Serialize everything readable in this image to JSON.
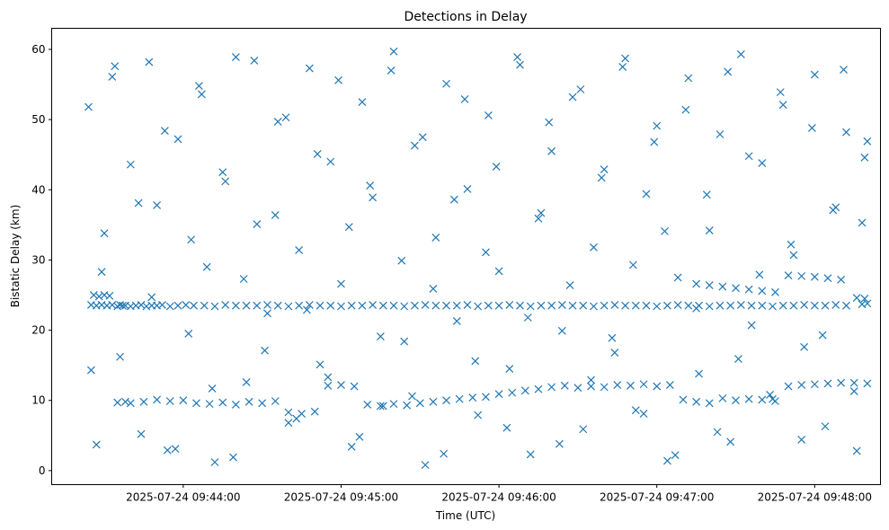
{
  "chart_data": {
    "type": "scatter",
    "title": "Detections in Delay",
    "xlabel": "Time (UTC)",
    "ylabel": "Bistatic Delay (km)",
    "marker": "x",
    "color": "#1f77b4",
    "grid": false,
    "xlim": [
      "2025-07-24 09:43:10",
      "2025-07-24 09:48:25"
    ],
    "ylim": [
      -2,
      63
    ],
    "xticks": [
      {
        "value": "2025-07-24 09:44:00",
        "label": "2025-07-24 09:44:00"
      },
      {
        "value": "2025-07-24 09:45:00",
        "label": "2025-07-24 09:45:00"
      },
      {
        "value": "2025-07-24 09:46:00",
        "label": "2025-07-24 09:46:00"
      },
      {
        "value": "2025-07-24 09:47:00",
        "label": "2025-07-24 09:47:00"
      },
      {
        "value": "2025-07-24 09:48:00",
        "label": "2025-07-24 09:48:00"
      }
    ],
    "yticks": [
      0,
      10,
      20,
      30,
      40,
      50,
      60
    ],
    "series": [
      {
        "x": [
          "2025-07-24 09:43:25",
          "2025-07-24 09:43:26",
          "2025-07-24 09:43:27",
          "2025-07-24 09:43:28",
          "2025-07-24 09:43:29",
          "2025-07-24 09:43:30",
          "2025-07-24 09:43:31",
          "2025-07-24 09:43:32",
          "2025-07-24 09:43:33",
          "2025-07-24 09:43:35",
          "2025-07-24 09:43:36",
          "2025-07-24 09:43:37",
          "2025-07-24 09:43:38",
          "2025-07-24 09:43:40",
          "2025-07-24 09:43:42",
          "2025-07-24 09:43:44",
          "2025-07-24 09:43:46",
          "2025-07-24 09:43:48",
          "2025-07-24 09:43:50",
          "2025-07-24 09:43:52",
          "2025-07-24 09:43:55",
          "2025-07-24 09:43:58",
          "2025-07-24 09:44:01",
          "2025-07-24 09:44:04",
          "2025-07-24 09:44:08",
          "2025-07-24 09:44:12",
          "2025-07-24 09:44:16",
          "2025-07-24 09:44:20",
          "2025-07-24 09:44:24",
          "2025-07-24 09:44:28",
          "2025-07-24 09:44:32",
          "2025-07-24 09:44:36",
          "2025-07-24 09:44:40",
          "2025-07-24 09:44:44",
          "2025-07-24 09:44:48",
          "2025-07-24 09:44:52",
          "2025-07-24 09:44:56",
          "2025-07-24 09:45:00",
          "2025-07-24 09:45:04",
          "2025-07-24 09:45:08",
          "2025-07-24 09:45:12",
          "2025-07-24 09:45:16",
          "2025-07-24 09:45:20",
          "2025-07-24 09:45:24",
          "2025-07-24 09:45:28",
          "2025-07-24 09:45:32",
          "2025-07-24 09:45:36",
          "2025-07-24 09:45:40",
          "2025-07-24 09:45:44",
          "2025-07-24 09:45:48",
          "2025-07-24 09:45:52",
          "2025-07-24 09:45:56",
          "2025-07-24 09:46:00",
          "2025-07-24 09:46:04",
          "2025-07-24 09:46:08",
          "2025-07-24 09:46:12",
          "2025-07-24 09:46:16",
          "2025-07-24 09:46:20",
          "2025-07-24 09:46:24",
          "2025-07-24 09:46:28",
          "2025-07-24 09:46:32",
          "2025-07-24 09:46:36",
          "2025-07-24 09:46:40",
          "2025-07-24 09:46:44",
          "2025-07-24 09:46:48",
          "2025-07-24 09:46:52",
          "2025-07-24 09:46:56",
          "2025-07-24 09:47:00",
          "2025-07-24 09:47:04",
          "2025-07-24 09:47:08",
          "2025-07-24 09:47:12",
          "2025-07-24 09:47:16",
          "2025-07-24 09:47:20",
          "2025-07-24 09:47:24",
          "2025-07-24 09:47:28",
          "2025-07-24 09:47:32",
          "2025-07-24 09:47:36",
          "2025-07-24 09:47:40",
          "2025-07-24 09:47:44",
          "2025-07-24 09:47:48",
          "2025-07-24 09:47:52",
          "2025-07-24 09:47:56",
          "2025-07-24 09:48:00",
          "2025-07-24 09:48:04",
          "2025-07-24 09:48:08",
          "2025-07-24 09:48:12",
          "2025-07-24 09:48:16",
          "2025-07-24 09:48:18",
          "2025-07-24 09:48:19",
          "2025-07-24 09:48:20"
        ],
        "y": [
          23.6,
          25.0,
          23.5,
          24.8,
          23.6,
          25.0,
          23.5,
          24.9,
          23.6,
          23.4,
          23.6,
          23.5,
          23.5,
          23.4,
          23.5,
          23.6,
          23.4,
          23.5,
          23.5,
          23.6,
          23.4,
          23.5,
          23.6,
          23.5,
          23.5,
          23.4,
          23.6,
          23.5,
          23.5,
          23.5,
          23.6,
          23.5,
          23.4,
          23.5,
          23.6,
          23.5,
          23.5,
          23.4,
          23.5,
          23.5,
          23.6,
          23.5,
          23.5,
          23.4,
          23.5,
          23.6,
          23.5,
          23.5,
          23.5,
          23.6,
          23.4,
          23.5,
          23.5,
          23.6,
          23.5,
          23.4,
          23.5,
          23.5,
          23.6,
          23.5,
          23.5,
          23.4,
          23.5,
          23.6,
          23.5,
          23.5,
          23.5,
          23.4,
          23.5,
          23.6,
          23.5,
          23.5,
          23.4,
          23.5,
          23.5,
          23.6,
          23.5,
          23.5,
          23.4,
          23.5,
          23.5,
          23.6,
          23.5,
          23.5,
          23.6,
          23.5,
          24.6,
          23.7,
          24.5,
          23.8
        ]
      },
      {
        "x": [
          "2025-07-24 09:43:35",
          "2025-07-24 09:43:40",
          "2025-07-24 09:43:45",
          "2025-07-24 09:43:50",
          "2025-07-24 09:43:55",
          "2025-07-24 09:44:00",
          "2025-07-24 09:44:05",
          "2025-07-24 09:44:10",
          "2025-07-24 09:44:15",
          "2025-07-24 09:44:20",
          "2025-07-24 09:44:25",
          "2025-07-24 09:44:30",
          "2025-07-24 09:44:35",
          "2025-07-24 09:44:40",
          "2025-07-24 09:44:45",
          "2025-07-24 09:44:50",
          "2025-07-24 09:44:55",
          "2025-07-24 09:45:00",
          "2025-07-24 09:45:05",
          "2025-07-24 09:45:10",
          "2025-07-24 09:45:15",
          "2025-07-24 09:45:20",
          "2025-07-24 09:45:25",
          "2025-07-24 09:45:30",
          "2025-07-24 09:45:35",
          "2025-07-24 09:45:40",
          "2025-07-24 09:45:45",
          "2025-07-24 09:45:50",
          "2025-07-24 09:45:55",
          "2025-07-24 09:46:00",
          "2025-07-24 09:46:05",
          "2025-07-24 09:46:10",
          "2025-07-24 09:46:15",
          "2025-07-24 09:46:20",
          "2025-07-24 09:46:25",
          "2025-07-24 09:46:30",
          "2025-07-24 09:46:35",
          "2025-07-24 09:46:40",
          "2025-07-24 09:46:45",
          "2025-07-24 09:46:50",
          "2025-07-24 09:46:55",
          "2025-07-24 09:47:00",
          "2025-07-24 09:47:05",
          "2025-07-24 09:47:10",
          "2025-07-24 09:47:15",
          "2025-07-24 09:47:20",
          "2025-07-24 09:47:25",
          "2025-07-24 09:47:30",
          "2025-07-24 09:47:35",
          "2025-07-24 09:47:40",
          "2025-07-24 09:47:45",
          "2025-07-24 09:47:50",
          "2025-07-24 09:47:55",
          "2025-07-24 09:48:00",
          "2025-07-24 09:48:05",
          "2025-07-24 09:48:10",
          "2025-07-24 09:48:15",
          "2025-07-24 09:48:20"
        ],
        "y": [
          9.7,
          9.6,
          9.8,
          10.1,
          9.9,
          10.0,
          9.6,
          9.5,
          9.7,
          9.4,
          9.8,
          9.6,
          9.9,
          8.3,
          8.1,
          8.4,
          12.1,
          12.2,
          12.0,
          9.4,
          9.2,
          9.5,
          9.3,
          9.6,
          9.8,
          10.0,
          10.2,
          10.4,
          10.5,
          10.9,
          11.1,
          11.4,
          11.6,
          11.9,
          12.1,
          11.8,
          12.0,
          11.9,
          12.2,
          12.1,
          12.3,
          12.0,
          12.2,
          10.1,
          9.8,
          9.6,
          10.3,
          10.0,
          10.2,
          10.1,
          9.9,
          12.0,
          12.2,
          12.3,
          12.4,
          12.5,
          12.5,
          12.4
        ]
      },
      {
        "x": [
          "2025-07-24 09:47:15",
          "2025-07-24 09:47:20",
          "2025-07-24 09:47:25",
          "2025-07-24 09:47:30",
          "2025-07-24 09:47:35",
          "2025-07-24 09:47:40",
          "2025-07-24 09:47:45",
          "2025-07-24 09:47:50",
          "2025-07-24 09:47:55",
          "2025-07-24 09:48:00",
          "2025-07-24 09:48:05",
          "2025-07-24 09:48:10"
        ],
        "y": [
          26.6,
          26.4,
          26.2,
          26.0,
          25.8,
          25.6,
          25.4,
          27.8,
          27.7,
          27.6,
          27.4,
          27.2
        ]
      },
      {
        "x": [
          "2025-07-24 09:43:24",
          "2025-07-24 09:43:27",
          "2025-07-24 09:43:30",
          "2025-07-24 09:43:33",
          "2025-07-24 09:43:36",
          "2025-07-24 09:43:40",
          "2025-07-24 09:43:44",
          "2025-07-24 09:43:47",
          "2025-07-24 09:43:50",
          "2025-07-24 09:43:54",
          "2025-07-24 09:43:58",
          "2025-07-24 09:44:02",
          "2025-07-24 09:44:06",
          "2025-07-24 09:44:09",
          "2025-07-24 09:44:12",
          "2025-07-24 09:44:16",
          "2025-07-24 09:44:20",
          "2025-07-24 09:44:24",
          "2025-07-24 09:44:28",
          "2025-07-24 09:44:32",
          "2025-07-24 09:44:36",
          "2025-07-24 09:44:40",
          "2025-07-24 09:44:44",
          "2025-07-24 09:44:48",
          "2025-07-24 09:44:52",
          "2025-07-24 09:44:56",
          "2025-07-24 09:45:00",
          "2025-07-24 09:45:04",
          "2025-07-24 09:45:08",
          "2025-07-24 09:45:12",
          "2025-07-24 09:45:16",
          "2025-07-24 09:45:20",
          "2025-07-24 09:45:24",
          "2025-07-24 09:45:28",
          "2025-07-24 09:45:32",
          "2025-07-24 09:45:36",
          "2025-07-24 09:45:40",
          "2025-07-24 09:45:44",
          "2025-07-24 09:45:48",
          "2025-07-24 09:45:52",
          "2025-07-24 09:45:56",
          "2025-07-24 09:46:00",
          "2025-07-24 09:46:04",
          "2025-07-24 09:46:08",
          "2025-07-24 09:46:12",
          "2025-07-24 09:46:16",
          "2025-07-24 09:46:20",
          "2025-07-24 09:46:24",
          "2025-07-24 09:46:28",
          "2025-07-24 09:46:32",
          "2025-07-24 09:46:36",
          "2025-07-24 09:46:40",
          "2025-07-24 09:46:44",
          "2025-07-24 09:46:48",
          "2025-07-24 09:46:52",
          "2025-07-24 09:46:56",
          "2025-07-24 09:47:00",
          "2025-07-24 09:47:04",
          "2025-07-24 09:47:08",
          "2025-07-24 09:47:12",
          "2025-07-24 09:47:16",
          "2025-07-24 09:47:20",
          "2025-07-24 09:47:24",
          "2025-07-24 09:47:28",
          "2025-07-24 09:47:32",
          "2025-07-24 09:47:36",
          "2025-07-24 09:47:40",
          "2025-07-24 09:47:44",
          "2025-07-24 09:47:48",
          "2025-07-24 09:47:52",
          "2025-07-24 09:47:56",
          "2025-07-24 09:48:00",
          "2025-07-24 09:48:04",
          "2025-07-24 09:48:08",
          "2025-07-24 09:48:12",
          "2025-07-24 09:48:16",
          "2025-07-24 09:48:19"
        ],
        "y": [
          51.8,
          3.7,
          33.8,
          56.1,
          16.2,
          43.6,
          5.2,
          58.2,
          37.8,
          2.9,
          47.2,
          19.5,
          54.8,
          29.0,
          1.2,
          41.2,
          58.9,
          12.6,
          35.1,
          22.4,
          49.7,
          6.8,
          31.4,
          57.3,
          15.1,
          44.0,
          26.6,
          3.4,
          52.5,
          38.9,
          9.2,
          59.7,
          18.4,
          46.3,
          0.8,
          33.2,
          55.1,
          21.3,
          40.1,
          7.9,
          50.6,
          28.4,
          14.5,
          57.8,
          2.3,
          36.7,
          45.5,
          19.9,
          53.2,
          5.9,
          31.8,
          42.9,
          16.8,
          58.7,
          8.6,
          39.4,
          49.1,
          1.4,
          27.5,
          55.9,
          13.8,
          34.2,
          47.9,
          4.1,
          59.3,
          20.7,
          43.8,
          10.2,
          52.1,
          30.7,
          17.6,
          56.4,
          6.3,
          37.5,
          48.2,
          2.8,
          44.6
        ]
      },
      {
        "x": [
          "2025-07-24 09:43:25",
          "2025-07-24 09:43:29",
          "2025-07-24 09:43:34",
          "2025-07-24 09:43:38",
          "2025-07-24 09:43:43",
          "2025-07-24 09:43:48",
          "2025-07-24 09:43:53",
          "2025-07-24 09:43:57",
          "2025-07-24 09:44:03",
          "2025-07-24 09:44:07",
          "2025-07-24 09:44:11",
          "2025-07-24 09:44:15",
          "2025-07-24 09:44:19",
          "2025-07-24 09:44:23",
          "2025-07-24 09:44:27",
          "2025-07-24 09:44:31",
          "2025-07-24 09:44:35",
          "2025-07-24 09:44:39",
          "2025-07-24 09:44:43",
          "2025-07-24 09:44:47",
          "2025-07-24 09:44:51",
          "2025-07-24 09:44:55",
          "2025-07-24 09:44:59",
          "2025-07-24 09:45:03",
          "2025-07-24 09:45:07",
          "2025-07-24 09:45:11",
          "2025-07-24 09:45:15",
          "2025-07-24 09:45:19",
          "2025-07-24 09:45:23",
          "2025-07-24 09:45:27",
          "2025-07-24 09:45:31",
          "2025-07-24 09:45:35",
          "2025-07-24 09:45:39",
          "2025-07-24 09:45:43",
          "2025-07-24 09:45:47",
          "2025-07-24 09:45:51",
          "2025-07-24 09:45:55",
          "2025-07-24 09:45:59",
          "2025-07-24 09:46:03",
          "2025-07-24 09:46:07",
          "2025-07-24 09:46:11",
          "2025-07-24 09:46:15",
          "2025-07-24 09:46:19",
          "2025-07-24 09:46:23",
          "2025-07-24 09:46:27",
          "2025-07-24 09:46:31",
          "2025-07-24 09:46:35",
          "2025-07-24 09:46:39",
          "2025-07-24 09:46:43",
          "2025-07-24 09:46:47",
          "2025-07-24 09:46:51",
          "2025-07-24 09:46:55",
          "2025-07-24 09:46:59",
          "2025-07-24 09:47:03",
          "2025-07-24 09:47:07",
          "2025-07-24 09:47:11",
          "2025-07-24 09:47:15",
          "2025-07-24 09:47:19",
          "2025-07-24 09:47:23",
          "2025-07-24 09:47:27",
          "2025-07-24 09:47:31",
          "2025-07-24 09:47:35",
          "2025-07-24 09:47:39",
          "2025-07-24 09:47:43",
          "2025-07-24 09:47:47",
          "2025-07-24 09:47:51",
          "2025-07-24 09:47:55",
          "2025-07-24 09:47:59",
          "2025-07-24 09:48:03",
          "2025-07-24 09:48:07",
          "2025-07-24 09:48:11",
          "2025-07-24 09:48:15",
          "2025-07-24 09:48:18",
          "2025-07-24 09:48:20"
        ],
        "y": [
          14.3,
          28.3,
          57.6,
          9.8,
          38.1,
          24.7,
          48.4,
          3.1,
          32.9,
          53.6,
          11.7,
          42.5,
          1.9,
          27.3,
          58.4,
          17.1,
          36.4,
          50.3,
          7.4,
          22.9,
          45.1,
          13.3,
          55.6,
          34.7,
          4.8,
          40.6,
          19.1,
          57.0,
          29.9,
          10.6,
          47.5,
          25.9,
          2.4,
          38.6,
          52.9,
          15.6,
          31.1,
          43.3,
          6.1,
          58.9,
          21.8,
          35.9,
          49.6,
          3.8,
          26.4,
          54.3,
          12.9,
          41.7,
          18.9,
          57.5,
          29.3,
          8.1,
          46.8,
          34.1,
          2.2,
          51.4,
          23.1,
          39.3,
          5.5,
          56.8,
          15.9,
          44.8,
          27.9,
          10.8,
          53.9,
          32.2,
          4.4,
          48.8,
          19.3,
          37.1,
          57.1,
          11.3,
          35.3,
          46.9
        ]
      }
    ]
  }
}
